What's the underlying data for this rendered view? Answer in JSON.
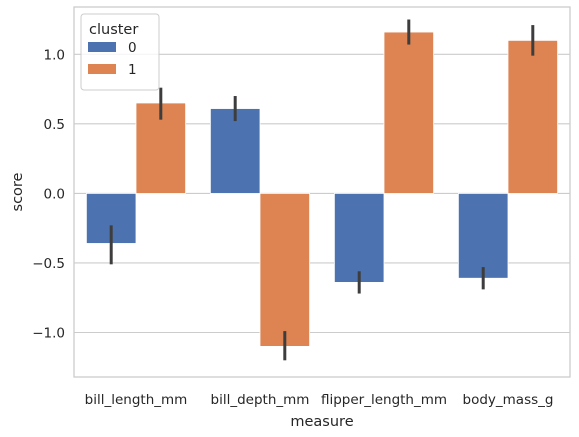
{
  "chart_data": {
    "type": "bar",
    "title": "",
    "xlabel": "measure",
    "ylabel": "score",
    "categories": [
      "bill_length_mm",
      "bill_depth_mm",
      "flipper_length_mm",
      "body_mass_g"
    ],
    "series": [
      {
        "name": "0",
        "color": "#4c72b0",
        "values": [
          -0.36,
          0.61,
          -0.64,
          -0.61
        ],
        "ci_low": [
          -0.51,
          0.52,
          -0.72,
          -0.69
        ],
        "ci_high": [
          -0.23,
          0.7,
          -0.56,
          -0.53
        ]
      },
      {
        "name": "1",
        "color": "#dd8452",
        "values": [
          0.65,
          -1.1,
          1.16,
          1.1
        ],
        "ci_low": [
          0.53,
          -1.2,
          1.07,
          0.99
        ],
        "ci_high": [
          0.76,
          -0.99,
          1.25,
          1.21
        ]
      }
    ],
    "ylim": [
      -1.32,
      1.34
    ],
    "yticks": [
      -1.0,
      -0.5,
      0.0,
      0.5,
      1.0
    ],
    "ytick_labels": [
      "−1.0",
      "−0.5",
      "0.0",
      "0.5",
      "1.0"
    ],
    "grid": "horizontal",
    "legend": {
      "title": "cluster",
      "position": "top-left"
    },
    "style": {
      "errorbar_color": "#3d3d3d",
      "grid_color": "#cccccc",
      "frame_color": "#cccccc"
    }
  }
}
